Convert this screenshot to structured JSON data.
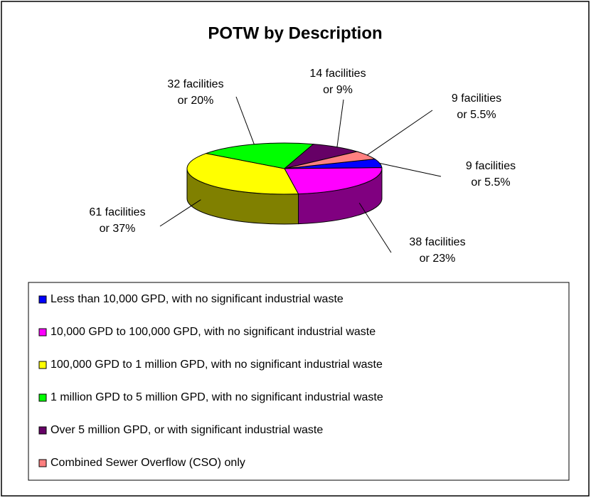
{
  "chart_data": {
    "type": "pie3d",
    "title": "POTW by Description",
    "categories": [
      "Less than 10,000 GPD, with no significant industrial waste",
      "10,000 GPD to 100,000 GPD, with no significant industrial waste",
      "100,000 GPD to 1 million GPD, with no significant industrial waste",
      "1 million GPD to 5 million GPD, with no significant industrial waste",
      "Over 5 million GPD, or with significant industrial waste",
      "Combined Sewer Overflow (CSO) only"
    ],
    "values": [
      9,
      38,
      61,
      32,
      14,
      9
    ],
    "value_labels": [
      [
        "9 facilities",
        "or 5.5%"
      ],
      [
        "38 facilities",
        "or 23%"
      ],
      [
        "61 facilities",
        "or 37%"
      ],
      [
        "32 facilities",
        "or 20%"
      ],
      [
        "14 facilities",
        "or 9%"
      ],
      [
        "9 facilities",
        "or 5.5%"
      ]
    ],
    "colors": [
      "#0000ff",
      "#ff00ff",
      "#ffff00",
      "#00ff00",
      "#660066",
      "#ff8080"
    ],
    "legend": "bottom"
  }
}
